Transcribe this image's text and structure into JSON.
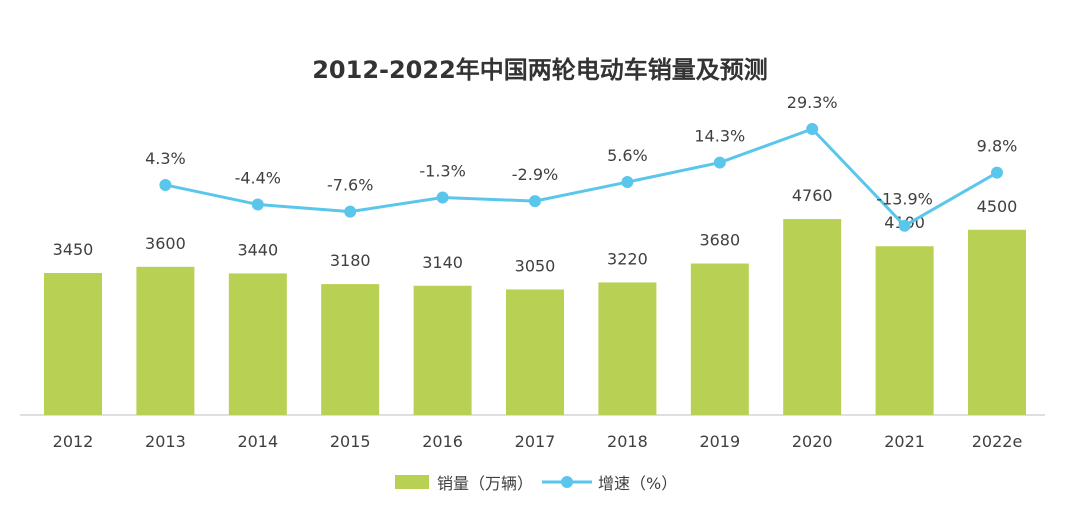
{
  "chart_data": {
    "type": "bar+line",
    "title": "2012-2022年中国两轮电动车销量及预测",
    "categories": [
      "2012",
      "2013",
      "2014",
      "2015",
      "2016",
      "2017",
      "2018",
      "2019",
      "2020",
      "2021",
      "2022e"
    ],
    "series": [
      {
        "name": "销量（万辆）",
        "type": "bar",
        "color": "#b8d053",
        "values": [
          3450,
          3600,
          3440,
          3180,
          3140,
          3050,
          3220,
          3680,
          4760,
          4100,
          4500
        ],
        "labels": [
          "3450",
          "3600",
          "3440",
          "3180",
          "3140",
          "3050",
          "3220",
          "3680",
          "4760",
          "4100",
          "4500"
        ]
      },
      {
        "name": "增速（%）",
        "type": "line",
        "color": "#5bc6ec",
        "values": [
          null,
          4.3,
          -4.4,
          -7.6,
          -1.3,
          -2.9,
          5.6,
          14.3,
          29.3,
          -13.9,
          9.8
        ],
        "labels": [
          "",
          "4.3%",
          "-4.4%",
          "-7.6%",
          "-1.3%",
          "-2.9%",
          "5.6%",
          "14.3%",
          "29.3%",
          "-13.9%",
          "9.8%"
        ]
      }
    ],
    "grid": false,
    "legend": "bottom"
  }
}
